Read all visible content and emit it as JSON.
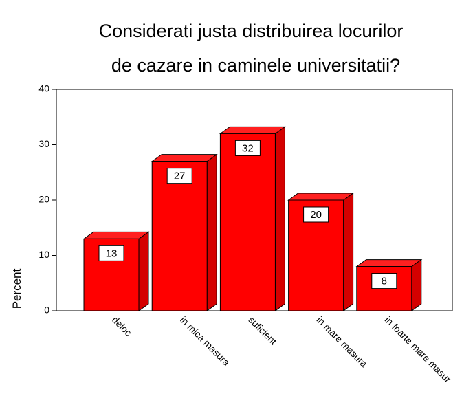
{
  "chart_data": {
    "type": "bar3d",
    "title": [
      "Considerati justa distribuirea locurilor",
      "de cazare in caminele universitatii?"
    ],
    "y_label": "Percent",
    "categories": [
      "deloc",
      "in mica masura",
      "suficient",
      "in mare masura",
      "in foarte mare masur"
    ],
    "values": [
      13,
      27,
      32,
      20,
      8
    ],
    "color": "#ff0000",
    "ylim": [
      0,
      40
    ],
    "yticks": [
      0,
      10,
      20,
      30,
      40
    ]
  }
}
